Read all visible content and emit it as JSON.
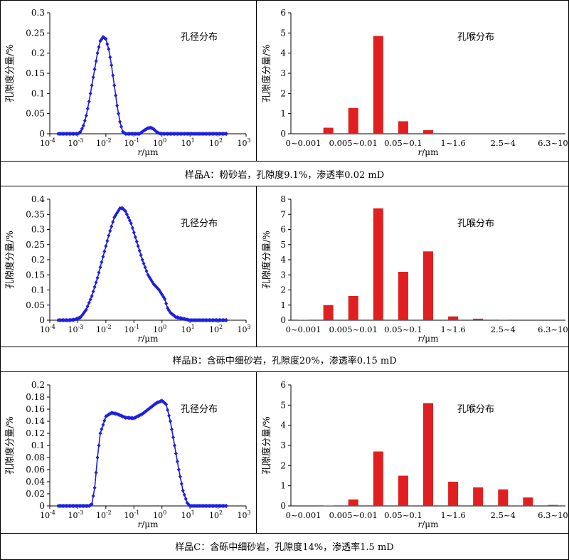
{
  "samples": [
    {
      "caption": "样品A：粉砂岩，孔隙度9.1%，渗透率0.02 mD",
      "pore": {
        "type": "line",
        "title": "孔径分布",
        "xlabel_italic": "r",
        "xlabel_unit": "/μm",
        "ylabel": "孔隙度分量/%",
        "ylim": [
          0,
          0.3
        ],
        "yticks": [
          "0",
          "0.05",
          "0.1",
          "0.15",
          "0.2",
          "0.25",
          "0.3"
        ],
        "xlim_log10": [
          -4,
          3
        ],
        "xtick_exponents": [
          "-4",
          "-3",
          "-2",
          "-1",
          "0",
          "1",
          "2",
          "3"
        ],
        "x_log10": [
          -3.7,
          -3.0,
          -2.9,
          -2.8,
          -2.7,
          -2.6,
          -2.5,
          -2.4,
          -2.3,
          -2.2,
          -2.1,
          -2.0,
          -1.9,
          -1.8,
          -1.7,
          -1.6,
          -1.5,
          -1.4,
          -1.3,
          -1.2,
          -1.1,
          -1.0,
          -0.9,
          -0.8,
          -0.7,
          -0.6,
          -0.5,
          -0.4,
          -0.3,
          -0.2,
          -0.1,
          0.0,
          0.5,
          1.0,
          2.3
        ],
        "y": [
          0,
          0,
          0.005,
          0.02,
          0.045,
          0.08,
          0.12,
          0.16,
          0.2,
          0.23,
          0.24,
          0.235,
          0.21,
          0.17,
          0.12,
          0.07,
          0.03,
          0.005,
          0,
          0,
          0,
          0,
          0,
          0,
          0.005,
          0.01,
          0.014,
          0.015,
          0.012,
          0.005,
          0.001,
          0,
          0,
          0,
          0
        ],
        "color": "#1f1fe0"
      },
      "throat": {
        "type": "bar",
        "title": "孔喉分布",
        "xlabel_italic": "r",
        "xlabel_unit": "/μm",
        "ylabel": "孔隙度分量/%",
        "ylim": [
          0,
          6
        ],
        "yticks": [
          "0",
          "1",
          "2",
          "3",
          "4",
          "5",
          "6"
        ],
        "tick_labels": [
          "0~0.001",
          "0.005~0.01",
          "0.05~0.1",
          "1~1.6",
          "2.5~4",
          "6.3~10"
        ],
        "values": [
          0,
          0.3,
          1.28,
          4.85,
          0.62,
          0.18,
          0,
          0,
          0,
          0,
          0
        ],
        "color": "#e02020"
      }
    },
    {
      "caption": "样品B：含砾中细砂岩，孔隙度20%，渗透率0.15 mD",
      "pore": {
        "type": "line",
        "title": "孔径分布",
        "xlabel_italic": "r",
        "xlabel_unit": "/μm",
        "ylabel": "孔隙度分量/%",
        "ylim": [
          0,
          0.4
        ],
        "yticks": [
          "0",
          "0.05",
          "0.1",
          "0.15",
          "0.2",
          "0.25",
          "0.3",
          "0.35",
          "0.4"
        ],
        "xlim_log10": [
          -4,
          3
        ],
        "xtick_exponents": [
          "-4",
          "-3",
          "-2",
          "-1",
          "0",
          "1",
          "2",
          "3"
        ],
        "x_log10": [
          -3.7,
          -3.3,
          -3.1,
          -2.9,
          -2.7,
          -2.5,
          -2.3,
          -2.1,
          -1.9,
          -1.7,
          -1.5,
          -1.4,
          -1.3,
          -1.1,
          -0.9,
          -0.7,
          -0.5,
          -0.3,
          -0.1,
          0.1,
          0.2,
          0.3,
          0.5,
          1.0,
          2.3
        ],
        "y": [
          0,
          0,
          0.002,
          0.01,
          0.035,
          0.08,
          0.14,
          0.21,
          0.28,
          0.34,
          0.37,
          0.37,
          0.36,
          0.32,
          0.26,
          0.2,
          0.15,
          0.12,
          0.1,
          0.07,
          0.04,
          0.025,
          0.01,
          0,
          0
        ],
        "color": "#1f1fe0"
      },
      "throat": {
        "type": "bar",
        "title": "孔喉分布",
        "xlabel_italic": "r",
        "xlabel_unit": "/μm",
        "ylabel": "孔隙度分量/%",
        "ylim": [
          0,
          8
        ],
        "yticks": [
          "0",
          "1",
          "2",
          "3",
          "4",
          "5",
          "6",
          "7",
          "8"
        ],
        "tick_labels": [
          "0~0.001",
          "0.005~0.01",
          "0.05~0.1",
          "1~1.6",
          "2.5~4",
          "6.3~10"
        ],
        "values": [
          0.02,
          1.0,
          1.6,
          7.4,
          3.2,
          4.55,
          0.25,
          0.1,
          0.03,
          0,
          0
        ],
        "color": "#e02020"
      }
    },
    {
      "caption": "样品C：含砾中细砂岩，孔隙度14%，渗透率1.5 mD",
      "pore": {
        "type": "line",
        "title": "孔径分布",
        "xlabel_italic": "r",
        "xlabel_unit": "/μm",
        "ylabel": "孔隙度分量/%",
        "ylim": [
          0,
          0.2
        ],
        "yticks": [
          "0",
          "0.02",
          "0.04",
          "0.06",
          "0.08",
          "0.1",
          "0.12",
          "0.14",
          "0.16",
          "0.18",
          "0.2"
        ],
        "xlim_log10": [
          -4,
          3
        ],
        "xtick_exponents": [
          "-4",
          "-3",
          "-2",
          "-1",
          "0",
          "1",
          "2",
          "3"
        ],
        "x_log10": [
          -3.7,
          -2.6,
          -2.5,
          -2.4,
          -2.3,
          -2.2,
          -2.0,
          -1.8,
          -1.6,
          -1.3,
          -1.0,
          -0.7,
          -0.4,
          -0.2,
          0.0,
          0.15,
          0.3,
          0.45,
          0.6,
          0.75,
          0.9,
          1.0,
          2.3
        ],
        "y": [
          0,
          0,
          0.003,
          0.03,
          0.08,
          0.12,
          0.148,
          0.154,
          0.152,
          0.146,
          0.145,
          0.152,
          0.163,
          0.17,
          0.174,
          0.168,
          0.14,
          0.1,
          0.06,
          0.025,
          0.005,
          0,
          0
        ],
        "color": "#1f1fe0"
      },
      "throat": {
        "type": "bar",
        "title": "孔喉分布",
        "xlabel_italic": "r",
        "xlabel_unit": "/μm",
        "ylabel": "孔隙度分量/%",
        "ylim": [
          0,
          6
        ],
        "yticks": [
          "0",
          "1",
          "2",
          "3",
          "4",
          "5",
          "6"
        ],
        "tick_labels": [
          "0~0.001",
          "0.005~0.01",
          "0.05~0.1",
          "1~1.6",
          "2.5~4",
          "6.3~10"
        ],
        "values": [
          0,
          0.02,
          0.32,
          2.7,
          1.5,
          5.1,
          1.2,
          0.92,
          0.82,
          0.42,
          0.05
        ],
        "color": "#e02020"
      }
    }
  ]
}
